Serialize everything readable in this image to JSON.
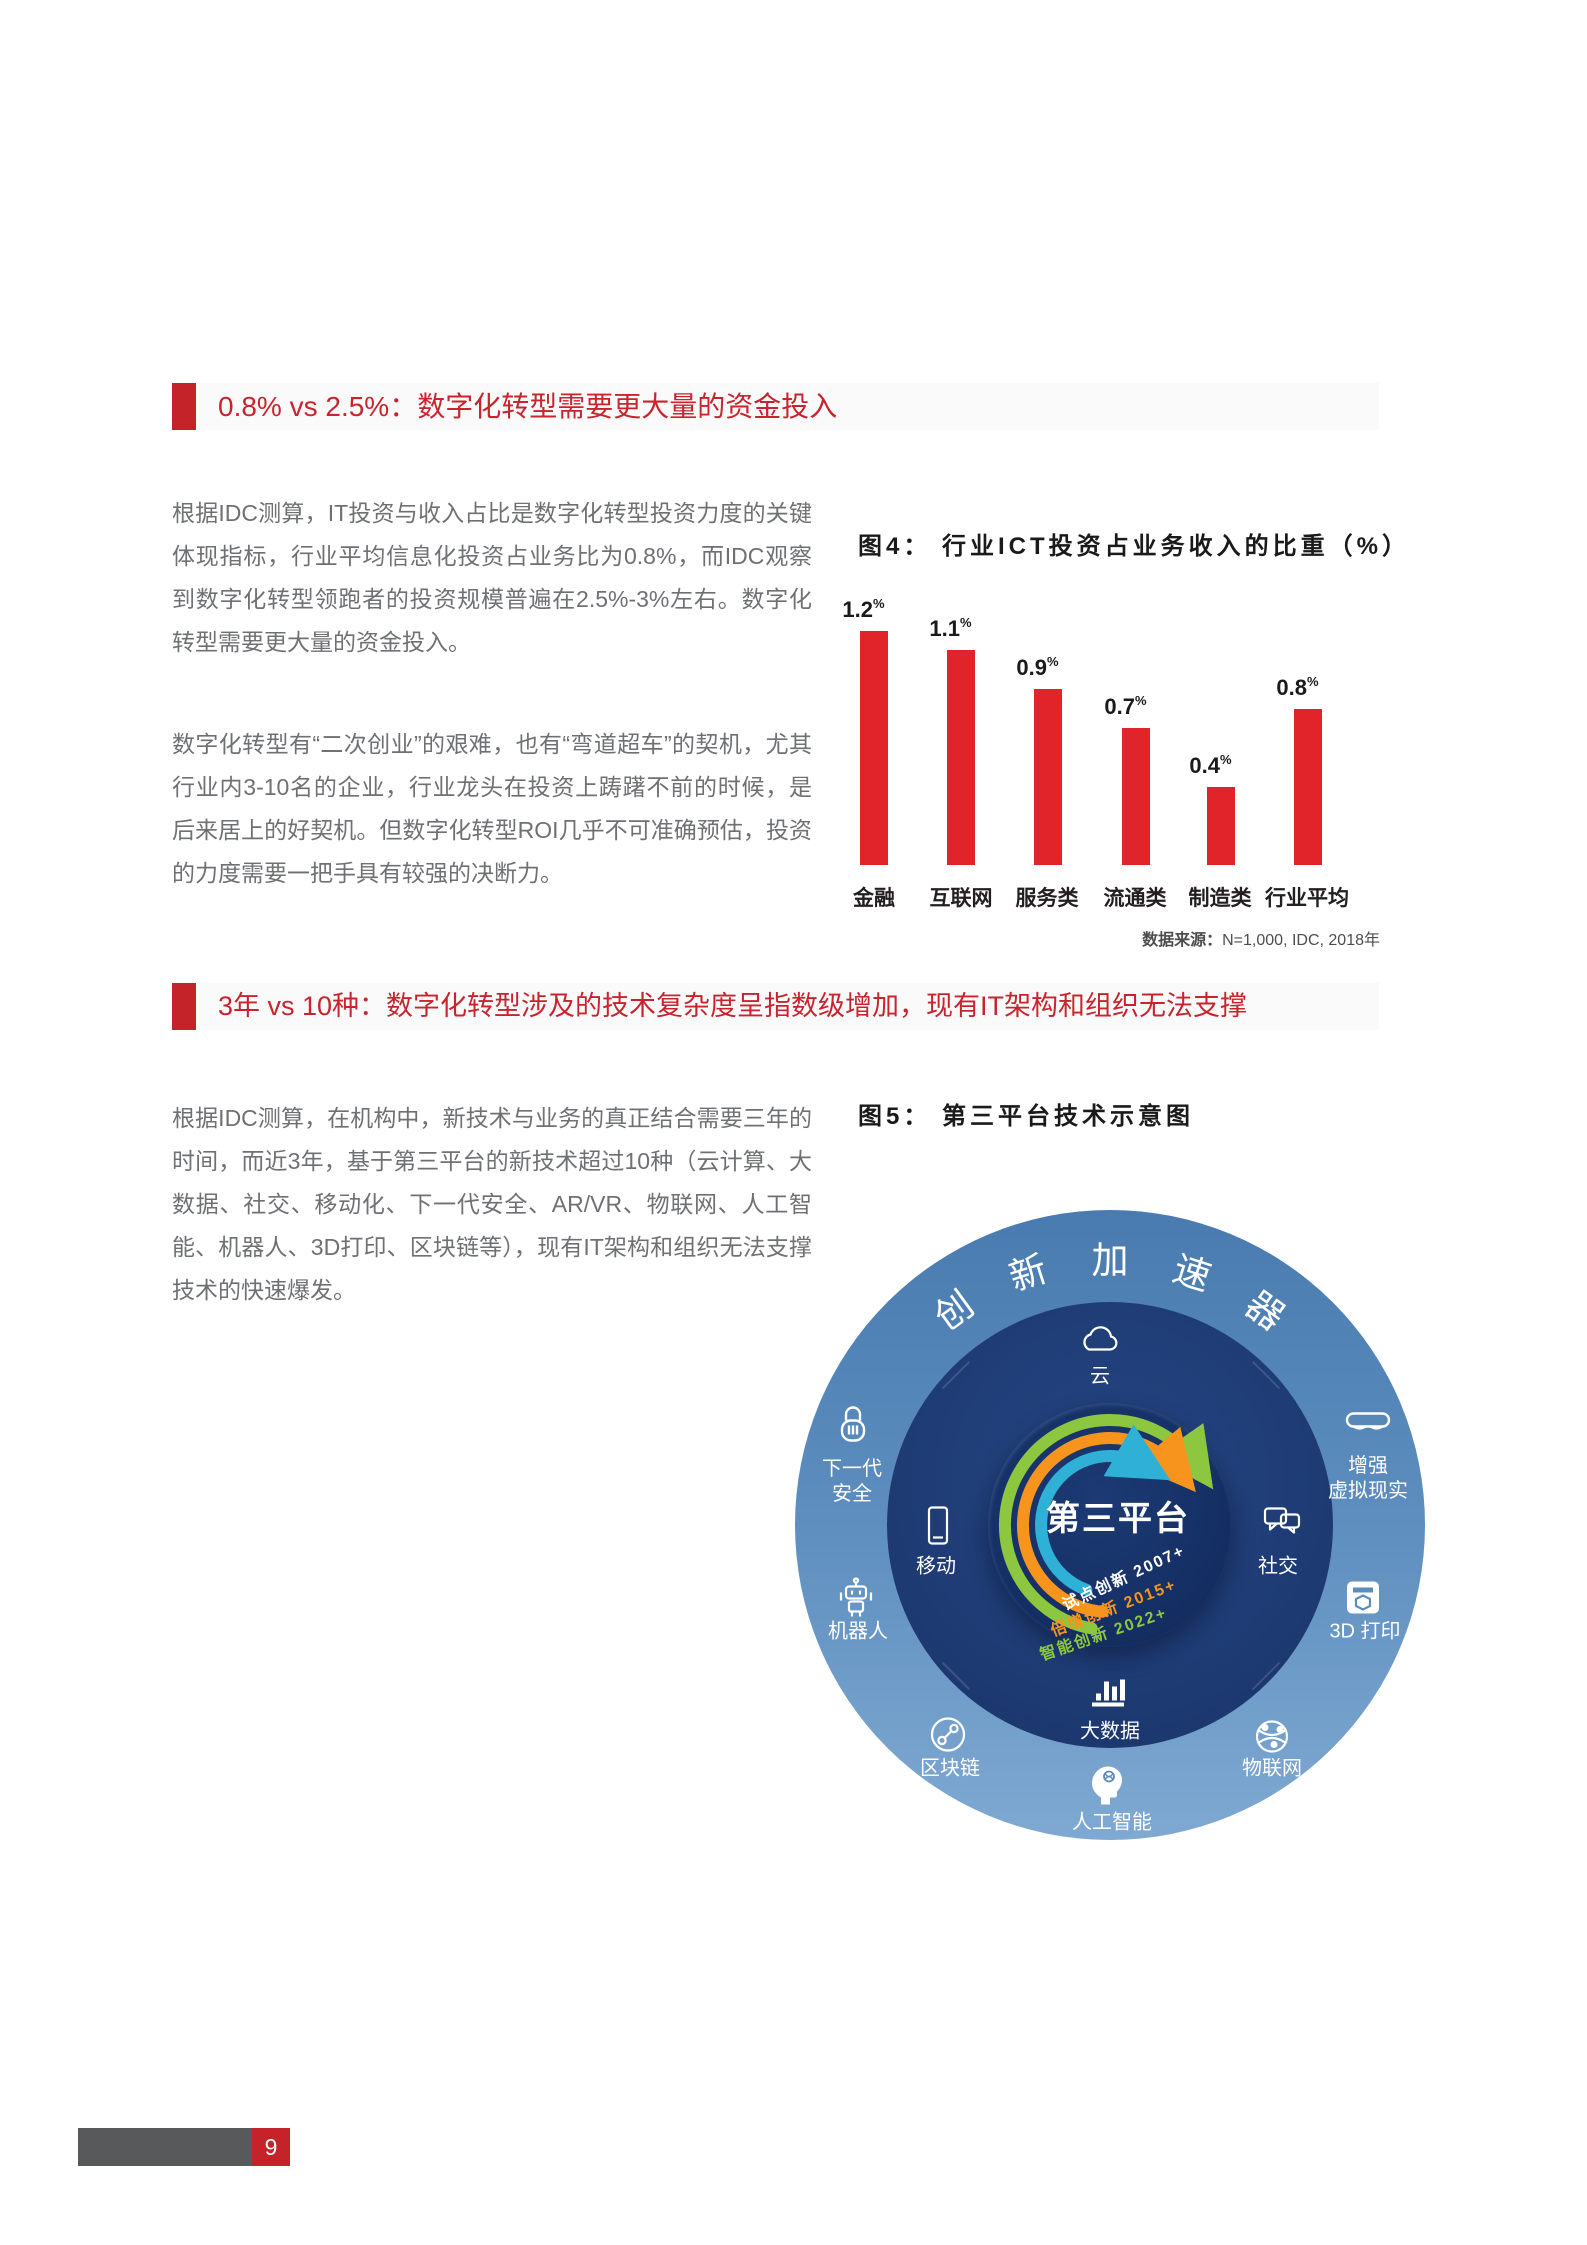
{
  "section1": {
    "title": "0.8% vs 2.5%：数字化转型需要更大量的资金投入",
    "paragraphs": [
      "根据IDC测算，IT投资与收入占比是数字化转型投资力度的关键体现指标，行业平均信息化投资占业务比为0.8%，而IDC观察到数字化转型领跑者的投资规模普遍在2.5%-3%左右。数字化转型需要更大量的资金投入。",
      "数字化转型有“二次创业”的艰难，也有“弯道超车”的契机，尤其行业内3-10名的企业，行业龙头在投资上踌躇不前的时候，是后来居上的好契机。但数字化转型ROI几乎不可准确预估，投资的力度需要一把手具有较强的决断力。"
    ]
  },
  "chart_data": {
    "type": "bar",
    "title": "图4： 行业ICT投资占业务收入的比重（%）",
    "categories": [
      "金融",
      "互联网",
      "服务类",
      "流通类",
      "制造类",
      "行业平均"
    ],
    "values": [
      1.2,
      1.1,
      0.9,
      0.7,
      0.4,
      0.8
    ],
    "unit": "%",
    "bar_color": "#e1242a",
    "ylim": [
      0,
      1.4
    ],
    "grid": false,
    "legend": "none",
    "source": "数据来源：N=1,000, IDC, 2018年"
  },
  "figure4": {
    "title": "图4： 行业ICT投资占业务收入的比重（%）",
    "source_label": "数据来源：",
    "source_value": "N=1,000, IDC, 2018年",
    "percent_sign": "%"
  },
  "section2": {
    "title": "3年 vs 10种：数字化转型涉及的技术复杂度呈指数级增加，现有IT架构和组织无法支撑",
    "paragraphs": [
      "根据IDC测算，在机构中，新技术与业务的真正结合需要三年的时间，而近3年，基于第三平台的新技术超过10种（云计算、大数据、社交、移动化、下一代安全、AR/VR、物联网、人工智能、机器人、3D打印、区块链等），现有IT架构和组织无法支撑技术的快速爆发。"
    ]
  },
  "figure5": {
    "title": "图5： 第三平台技术示意图",
    "diagram": {
      "arc_title": "创新加速器",
      "center_label": "第三平台",
      "spiral": [
        {
          "text": "试点创新 2007+",
          "color": "#ffffff"
        },
        {
          "text": "倍增创新 2015+",
          "color": "#f7941e"
        },
        {
          "text": "智能创新 2022+",
          "color": "#8dc63f"
        }
      ],
      "arc_colors": {
        "inner": "#2fb0d6",
        "middle": "#f7941e",
        "outer": "#8dc63f"
      },
      "middle_items": [
        {
          "label": "云",
          "icon": "cloud-icon"
        },
        {
          "label": "移动",
          "icon": "mobile-icon"
        },
        {
          "label": "社交",
          "icon": "social-icon"
        },
        {
          "label": "大数据",
          "icon": "big-data-icon"
        }
      ],
      "outer_items": [
        {
          "label": "下一代\n安全",
          "icon": "lock-icon"
        },
        {
          "label": "增强\n虚拟现实",
          "icon": "ar-vr-icon"
        },
        {
          "label": "机器人",
          "icon": "robot-icon"
        },
        {
          "label": "3D 打印",
          "icon": "printer-3d-icon"
        },
        {
          "label": "区块链",
          "icon": "blockchain-icon"
        },
        {
          "label": "物联网",
          "icon": "iot-icon"
        },
        {
          "label": "人工智能",
          "icon": "ai-icon"
        }
      ]
    }
  },
  "footer": {
    "page_number": "9"
  }
}
